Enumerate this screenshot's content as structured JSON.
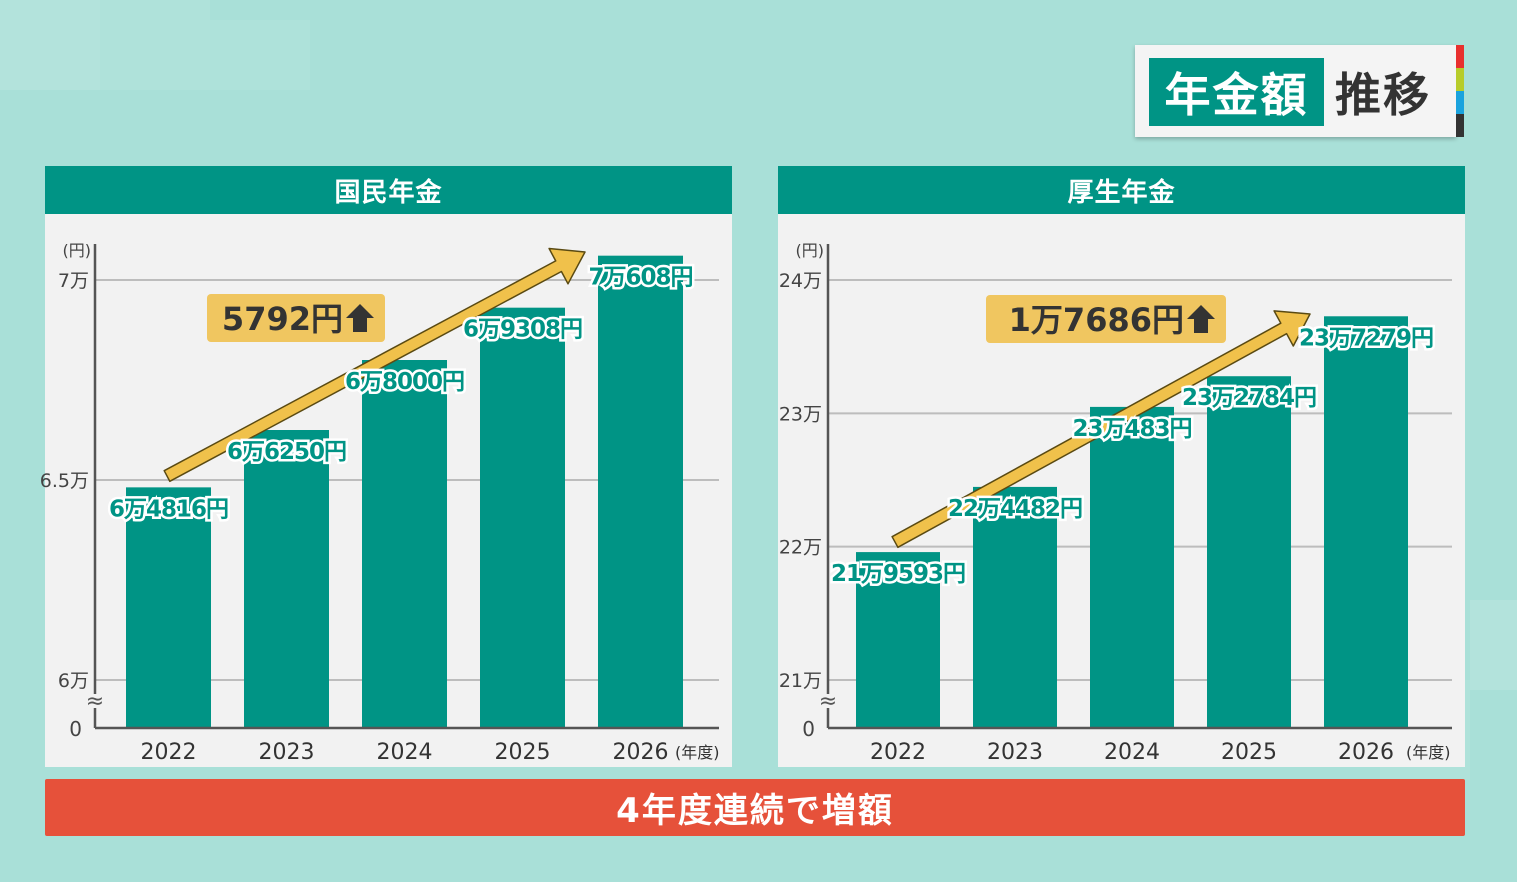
{
  "header": {
    "title_main": "年金額",
    "title_sub": "推移"
  },
  "colors": {
    "bar": "#009485",
    "arrow": "#f0c14b",
    "badge": "#f0c660",
    "banner": "#e6513a",
    "stripe_red": "#e8302e",
    "stripe_yellow": "#b7cc2a",
    "stripe_blue": "#1aa3de",
    "stripe_dark": "#333333"
  },
  "banner": {
    "text": "4年度連続で増額"
  },
  "chart_data": [
    {
      "type": "bar",
      "title": "国民年金",
      "unit_label": "(円)",
      "x_unit": "(年度)",
      "categories": [
        "2022",
        "2023",
        "2024",
        "2025",
        "2026"
      ],
      "values": [
        64816,
        66250,
        68000,
        69308,
        70608
      ],
      "value_labels": [
        "6万4816円",
        "6万6250円",
        "6万8000円",
        "6万9308円",
        "7万608円"
      ],
      "ylim": [
        60000,
        70000
      ],
      "y_ticks": [
        {
          "value": 70000,
          "label": "7万"
        },
        {
          "value": 65000,
          "label": "6.5万"
        },
        {
          "value": 60000,
          "label": "6万"
        }
      ],
      "zero_label": "0",
      "axis_break": "≈",
      "increase_label": "5792円",
      "increase_icon": "up-arrow-icon"
    },
    {
      "type": "bar",
      "title": "厚生年金",
      "unit_label": "(円)",
      "x_unit": "(年度)",
      "categories": [
        "2022",
        "2023",
        "2024",
        "2025",
        "2026"
      ],
      "values": [
        219593,
        224482,
        230483,
        232784,
        237279
      ],
      "value_labels": [
        "21万9593円",
        "22万4482円",
        "23万483円",
        "23万2784円",
        "23万7279円"
      ],
      "ylim": [
        210000,
        240000
      ],
      "y_ticks": [
        {
          "value": 240000,
          "label": "24万"
        },
        {
          "value": 230000,
          "label": "23万"
        },
        {
          "value": 220000,
          "label": "22万"
        },
        {
          "value": 210000,
          "label": "21万"
        }
      ],
      "zero_label": "0",
      "axis_break": "≈",
      "increase_label": "1万7686円",
      "increase_icon": "up-arrow-icon"
    }
  ]
}
